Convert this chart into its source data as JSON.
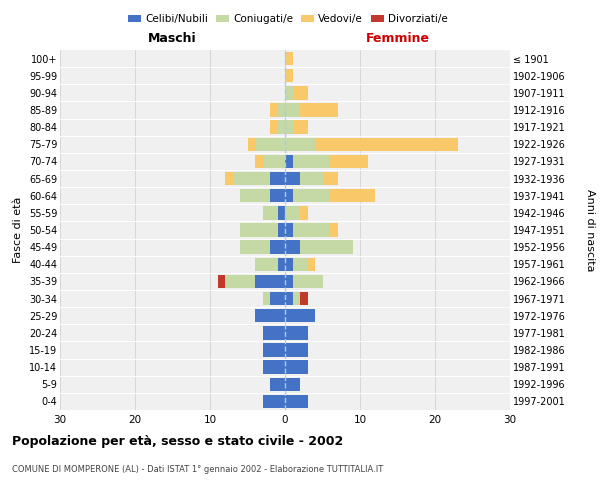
{
  "age_groups": [
    "0-4",
    "5-9",
    "10-14",
    "15-19",
    "20-24",
    "25-29",
    "30-34",
    "35-39",
    "40-44",
    "45-49",
    "50-54",
    "55-59",
    "60-64",
    "65-69",
    "70-74",
    "75-79",
    "80-84",
    "85-89",
    "90-94",
    "95-99",
    "100+"
  ],
  "birth_years": [
    "1997-2001",
    "1992-1996",
    "1987-1991",
    "1982-1986",
    "1977-1981",
    "1972-1976",
    "1967-1971",
    "1962-1966",
    "1957-1961",
    "1952-1956",
    "1947-1951",
    "1942-1946",
    "1937-1941",
    "1932-1936",
    "1927-1931",
    "1922-1926",
    "1917-1921",
    "1912-1916",
    "1907-1911",
    "1902-1906",
    "≤ 1901"
  ],
  "males": {
    "celibi": [
      3,
      2,
      3,
      3,
      3,
      4,
      2,
      4,
      1,
      2,
      1,
      1,
      2,
      2,
      0,
      0,
      0,
      0,
      0,
      0,
      0
    ],
    "coniugati": [
      0,
      0,
      0,
      0,
      0,
      0,
      1,
      4,
      3,
      4,
      5,
      2,
      4,
      5,
      3,
      4,
      1,
      1,
      0,
      0,
      0
    ],
    "vedovi": [
      0,
      0,
      0,
      0,
      0,
      0,
      0,
      0,
      0,
      0,
      0,
      0,
      0,
      1,
      1,
      1,
      1,
      1,
      0,
      0,
      0
    ],
    "divorziati": [
      0,
      0,
      0,
      0,
      0,
      0,
      0,
      1,
      0,
      0,
      0,
      0,
      0,
      0,
      0,
      0,
      0,
      0,
      0,
      0,
      0
    ]
  },
  "females": {
    "nubili": [
      3,
      2,
      3,
      3,
      3,
      4,
      1,
      1,
      1,
      2,
      1,
      0,
      1,
      2,
      1,
      0,
      0,
      0,
      0,
      0,
      0
    ],
    "coniugate": [
      0,
      0,
      0,
      0,
      0,
      0,
      1,
      4,
      2,
      7,
      5,
      2,
      5,
      3,
      5,
      4,
      1,
      2,
      1,
      0,
      0
    ],
    "vedove": [
      0,
      0,
      0,
      0,
      0,
      0,
      0,
      0,
      1,
      0,
      1,
      1,
      6,
      2,
      5,
      19,
      2,
      5,
      2,
      1,
      1
    ],
    "divorziate": [
      0,
      0,
      0,
      0,
      0,
      0,
      1,
      0,
      0,
      0,
      0,
      0,
      0,
      0,
      0,
      0,
      0,
      0,
      0,
      0,
      0
    ]
  },
  "color_celibi": "#4472c4",
  "color_coniugati": "#c5d9a5",
  "color_vedovi": "#f9c869",
  "color_divorziati": "#c0392b",
  "xlim": 30,
  "title": "Popolazione per età, sesso e stato civile - 2002",
  "subtitle": "COMUNE DI MOMPERONE (AL) - Dati ISTAT 1° gennaio 2002 - Elaborazione TUTTITALIA.IT",
  "ylabel_left": "Fasce di età",
  "ylabel_right": "Anni di nascita",
  "xlabel_maschi": "Maschi",
  "xlabel_femmine": "Femmine",
  "bg_color": "#f0f0f0"
}
